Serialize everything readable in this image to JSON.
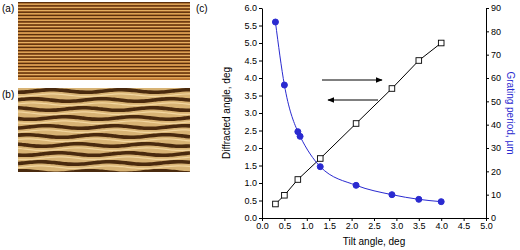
{
  "panel_labels": [
    "(a)",
    "(b)",
    "(c)"
  ],
  "chart_data": {
    "type": "line",
    "x_label": "Tilt angle, deg",
    "y_label": "Diffracted angle, deg",
    "y2_label": "Grating period, µm",
    "xlim": [
      0,
      5
    ],
    "xticks": [
      {
        "value": 0,
        "label": "0.0"
      },
      0.5,
      {
        "value": 1,
        "label": "1.0"
      },
      1.5,
      {
        "value": 2,
        "label": "2.0"
      },
      2.5,
      {
        "value": 3,
        "label": "3.0"
      },
      3.5,
      {
        "value": 4,
        "label": "4.0"
      },
      4.5,
      {
        "value": 5,
        "label": "5.0"
      }
    ],
    "ylim": [
      0,
      6
    ],
    "yticks": [
      {
        "value": 0,
        "label": "0.0"
      },
      0.5,
      {
        "value": 1,
        "label": "1.0"
      },
      1.5,
      {
        "value": 2,
        "label": "2.0"
      },
      2.5,
      {
        "value": 3,
        "label": "3.0"
      },
      3.5,
      {
        "value": 4,
        "label": "4.0"
      },
      4.5,
      {
        "value": 5,
        "label": "5.0"
      },
      5.5,
      {
        "value": 6,
        "label": "6.0"
      }
    ],
    "y2lim": [
      0,
      90
    ],
    "y2ticks": [
      0,
      10,
      20,
      30,
      40,
      50,
      60,
      70,
      80,
      90
    ],
    "grid": false,
    "series": [
      {
        "color": "#000000",
        "marker": "square",
        "line_style": "solid",
        "x": [
          0.3,
          0.5,
          0.8,
          1.3,
          2.1,
          2.9,
          3.5,
          4.0
        ],
        "values": [
          0.4,
          0.65,
          1.1,
          1.7,
          2.7,
          3.7,
          4.5,
          5.0
        ]
      },
      {
        "axis": "y2",
        "color": "#2a2ad0",
        "marker": "circle",
        "line_style": "solid",
        "x": [
          0.3,
          0.5,
          0.8,
          0.85,
          1.3,
          2.1,
          2.9,
          3.5,
          4.0
        ],
        "values": [
          84,
          57,
          37,
          35,
          22,
          14,
          10,
          8,
          7
        ]
      }
    ]
  }
}
